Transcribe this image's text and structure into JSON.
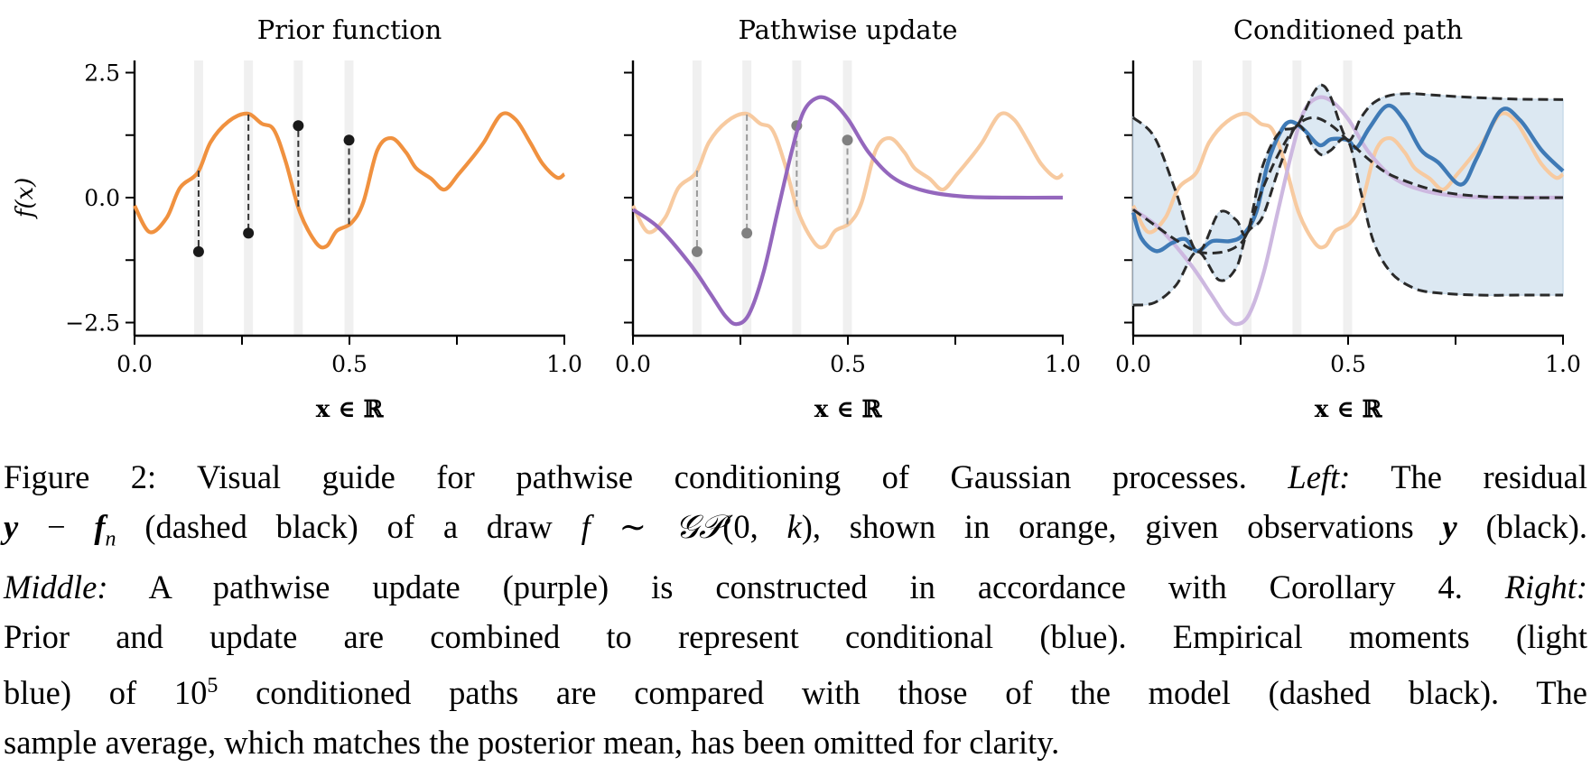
{
  "figure": {
    "panels": [
      {
        "title": "Prior function",
        "xlabel": "x ∈ ℝ",
        "ylabel": "f(x)"
      },
      {
        "title": "Pathwise update",
        "xlabel": "x ∈ ℝ",
        "ylabel": ""
      },
      {
        "title": "Conditioned path",
        "xlabel": "x ∈ ℝ",
        "ylabel": ""
      }
    ],
    "colors": {
      "prior": "#f0913f",
      "prior_faded": "#f7caa0",
      "update": "#9467bd",
      "update_faded": "#cdb8e0",
      "conditioned": "#3f7ab6",
      "band_fill": "#dce8f2",
      "observation": "#1a1a1a",
      "observation_faded": "#808080",
      "highlight_band": "#f0f0f0",
      "model_moments": "#2a2a2a"
    }
  },
  "chart_data": [
    {
      "type": "line",
      "title": "Prior function",
      "xlabel": "x ∈ ℝ",
      "ylabel": "f(x)",
      "xlim": [
        0,
        1
      ],
      "ylim": [
        -2.75,
        2.75
      ],
      "xticks": [
        0.0,
        0.25,
        0.5,
        0.75,
        1.0
      ],
      "xtick_labels": [
        "0.0",
        "",
        "0.5",
        "",
        "1.0"
      ],
      "yticks": [
        2.5,
        1.25,
        0.0,
        -1.25,
        -2.5
      ],
      "ytick_labels": [
        "2.5",
        "",
        "0.0",
        "",
        "−2.5"
      ],
      "grid": false,
      "series": [
        {
          "name": "prior draw (orange)",
          "x": [
            0,
            0.035,
            0.075,
            0.106,
            0.147,
            0.177,
            0.218,
            0.262,
            0.296,
            0.324,
            0.352,
            0.385,
            0.423,
            0.447,
            0.47,
            0.504,
            0.532,
            0.565,
            0.598,
            0.631,
            0.655,
            0.69,
            0.721,
            0.754,
            0.785,
            0.813,
            0.853,
            0.887,
            0.92,
            0.95,
            0.983,
            1.0
          ],
          "y": [
            -0.16,
            -0.69,
            -0.4,
            0.2,
            0.5,
            1.11,
            1.52,
            1.68,
            1.48,
            1.36,
            0.71,
            -0.3,
            -0.91,
            -0.97,
            -0.67,
            -0.51,
            -0.1,
            0.95,
            1.19,
            0.91,
            0.59,
            0.38,
            0.16,
            0.47,
            0.79,
            1.11,
            1.66,
            1.56,
            1.11,
            0.67,
            0.4,
            0.47
          ]
        }
      ],
      "observations": {
        "x": [
          0.149,
          0.265,
          0.381,
          0.499
        ],
        "y": [
          -1.08,
          -0.71,
          1.44,
          1.15
        ]
      },
      "residuals": "dashed black lines from prior f(x_i) to y_i"
    },
    {
      "type": "line",
      "title": "Pathwise update",
      "xlabel": "x ∈ ℝ",
      "xlim": [
        0,
        1
      ],
      "ylim": [
        -2.75,
        2.75
      ],
      "xticks": [
        0.0,
        0.25,
        0.5,
        0.75,
        1.0
      ],
      "xtick_labels": [
        "0.0",
        "",
        "0.5",
        "",
        "1.0"
      ],
      "series": [
        {
          "name": "pathwise update (purple)",
          "x": [
            0,
            0.061,
            0.132,
            0.18,
            0.215,
            0.241,
            0.27,
            0.303,
            0.336,
            0.369,
            0.397,
            0.43,
            0.463,
            0.501,
            0.548,
            0.605,
            0.676,
            0.771,
            0.889,
            1.0
          ],
          "y": [
            -0.24,
            -0.61,
            -1.32,
            -1.92,
            -2.37,
            -2.53,
            -2.33,
            -1.52,
            -0.3,
            0.91,
            1.72,
            2.0,
            1.92,
            1.56,
            0.91,
            0.4,
            0.14,
            0.02,
            0.0,
            0.0
          ]
        }
      ]
    },
    {
      "type": "line",
      "title": "Conditioned path",
      "xlabel": "x ∈ ℝ",
      "xlim": [
        0,
        1
      ],
      "ylim": [
        -2.75,
        2.75
      ],
      "xticks": [
        0.0,
        0.25,
        0.5,
        0.75,
        1.0
      ],
      "xtick_labels": [
        "0.0",
        "",
        "0.5",
        "",
        "1.0"
      ],
      "series": [
        {
          "name": "conditioned path (blue)",
          "x": [
            0,
            0.019,
            0.054,
            0.09,
            0.121,
            0.149,
            0.184,
            0.225,
            0.255,
            0.286,
            0.314,
            0.343,
            0.366,
            0.397,
            0.433,
            0.461,
            0.499,
            0.52,
            0.55,
            0.592,
            0.63,
            0.67,
            0.71,
            0.763,
            0.8,
            0.855,
            0.9,
            0.95,
            1.0
          ],
          "y": [
            -0.3,
            -0.81,
            -1.07,
            -0.91,
            -0.83,
            -1.07,
            -0.87,
            -0.87,
            -0.75,
            -0.3,
            0.71,
            1.32,
            1.52,
            1.36,
            1.05,
            1.17,
            1.15,
            1.0,
            1.4,
            1.84,
            1.55,
            0.95,
            0.7,
            0.26,
            0.8,
            1.74,
            1.55,
            0.95,
            0.53
          ]
        },
        {
          "name": "model mean (dashed black)",
          "x": [
            0,
            0.05,
            0.1,
            0.149,
            0.2,
            0.24,
            0.265,
            0.3,
            0.34,
            0.381,
            0.42,
            0.46,
            0.499,
            0.55,
            0.6,
            0.7,
            0.8,
            0.9,
            1.0
          ],
          "y": [
            -0.24,
            -0.55,
            -0.85,
            -1.08,
            -1.1,
            -0.98,
            -0.71,
            0.15,
            0.9,
            1.44,
            1.6,
            1.45,
            1.15,
            0.75,
            0.45,
            0.15,
            0.03,
            0.0,
            0.0
          ]
        },
        {
          "name": "model upper 2σ (dashed black)",
          "x": [
            0,
            0.05,
            0.1,
            0.149,
            0.2,
            0.24,
            0.265,
            0.3,
            0.34,
            0.381,
            0.42,
            0.44,
            0.46,
            0.499,
            0.53,
            0.56,
            0.6,
            0.65,
            0.7,
            0.8,
            0.9,
            1.0
          ],
          "y": [
            1.6,
            1.2,
            0.1,
            -1.08,
            -0.3,
            -0.45,
            -0.71,
            0.6,
            1.3,
            1.44,
            2.1,
            2.25,
            2.0,
            1.15,
            1.6,
            1.9,
            2.05,
            2.08,
            2.05,
            2.0,
            1.97,
            1.96
          ]
        },
        {
          "name": "model lower 2σ (dashed black)",
          "x": [
            0,
            0.05,
            0.1,
            0.149,
            0.2,
            0.24,
            0.265,
            0.3,
            0.34,
            0.381,
            0.42,
            0.44,
            0.46,
            0.499,
            0.53,
            0.56,
            0.6,
            0.65,
            0.7,
            0.8,
            0.9,
            1.0
          ],
          "y": [
            -2.15,
            -2.1,
            -1.75,
            -1.08,
            -1.65,
            -1.4,
            -0.71,
            -0.4,
            0.6,
            1.44,
            1.0,
            0.85,
            0.95,
            1.15,
            0.1,
            -0.9,
            -1.5,
            -1.8,
            -1.9,
            -1.95,
            -1.95,
            -1.95
          ]
        },
        {
          "name": "empirical moments (light blue band)",
          "note": "10^5 conditioned paths"
        }
      ],
      "faded_series": [
        "prior draw (orange)",
        "pathwise update (purple)"
      ]
    }
  ],
  "caption": {
    "lines": [
      [
        {
          "t": "Figure 2: Visual guide for pathwise conditioning of Gaussian processes. "
        },
        {
          "t": "Left:",
          "s": "it"
        },
        {
          "t": " The residual"
        }
      ],
      [
        {
          "t": "y",
          "s": "bf"
        },
        {
          "t": " − "
        },
        {
          "t": "f",
          "s": "bf"
        },
        {
          "t": "n",
          "s": "sub"
        },
        {
          "t": " (dashed black) of a draw "
        },
        {
          "t": "f",
          "s": "it"
        },
        {
          "t": " ∼ "
        },
        {
          "t": "𝒢𝒫",
          "s": "it"
        },
        {
          "t": "(0, "
        },
        {
          "t": "k",
          "s": "it"
        },
        {
          "t": "), shown in orange, given observations "
        },
        {
          "t": "y",
          "s": "bf"
        },
        {
          "t": " (black)."
        }
      ],
      [
        {
          "t": "Middle:",
          "s": "it"
        },
        {
          "t": " A pathwise update (purple) is constructed in accordance with Corollary 4. "
        },
        {
          "t": "Right:",
          "s": "it"
        }
      ],
      [
        {
          "t": "Prior and update are combined to represent conditional (blue). Empirical moments (light"
        }
      ],
      [
        {
          "t": "blue) of 10"
        },
        {
          "t": "5",
          "s": "sup"
        },
        {
          "t": " conditioned paths are compared with those of the model (dashed black). The"
        }
      ],
      [
        {
          "t": "sample average, which matches the posterior mean, has been omitted for clarity."
        }
      ]
    ]
  }
}
